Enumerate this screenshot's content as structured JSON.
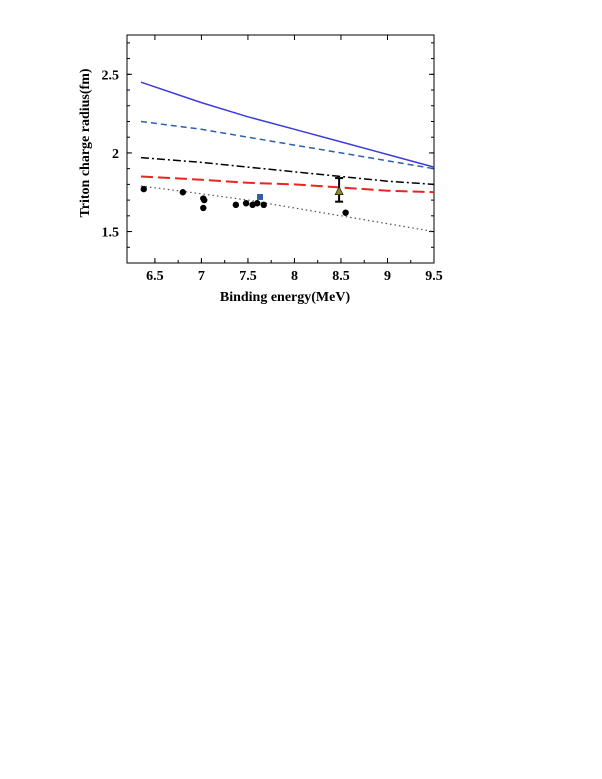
{
  "chart_data": {
    "type": "scatter",
    "title": "",
    "xlabel": "Binding energy(MeV)",
    "ylabel": "Triton charge radius(fm)",
    "xlim": [
      6.2,
      9.5
    ],
    "ylim": [
      1.3,
      2.75
    ],
    "x_ticks": [
      6.5,
      7,
      7.5,
      8,
      8.5,
      9,
      9.5
    ],
    "x_tick_labels": [
      "6.5",
      "7",
      "7.5",
      "8",
      "8.5",
      "9",
      "9.5"
    ],
    "y_ticks": [
      1.5,
      2,
      2.5
    ],
    "y_tick_labels": [
      "1.5",
      "2",
      "2.5"
    ],
    "grid": false,
    "legend": "none",
    "curves": [
      {
        "style": "solid",
        "color": "#3c3ce0",
        "x": [
          6.35,
          7.0,
          7.5,
          8.0,
          8.5,
          9.0,
          9.5
        ],
        "y": [
          2.45,
          2.32,
          2.23,
          2.15,
          2.07,
          1.99,
          1.91
        ]
      },
      {
        "style": "dashed",
        "color": "#2e5fa8",
        "x": [
          6.35,
          7.0,
          7.5,
          8.0,
          8.5,
          9.0,
          9.5
        ],
        "y": [
          2.2,
          2.15,
          2.1,
          2.05,
          2.0,
          1.95,
          1.9
        ]
      },
      {
        "style": "dash-dot",
        "color": "#000000",
        "x": [
          6.35,
          7.0,
          7.5,
          8.0,
          8.5,
          9.0,
          9.5
        ],
        "y": [
          1.97,
          1.94,
          1.91,
          1.88,
          1.85,
          1.82,
          1.8
        ]
      },
      {
        "style": "long-dash",
        "color": "#e8251e",
        "x": [
          6.35,
          7.0,
          7.5,
          8.0,
          8.5,
          9.0,
          9.5
        ],
        "y": [
          1.85,
          1.83,
          1.81,
          1.8,
          1.78,
          1.76,
          1.75
        ]
      },
      {
        "style": "dotted",
        "color": "#555555",
        "x": [
          6.35,
          7.0,
          7.5,
          8.0,
          8.5,
          9.0,
          9.5
        ],
        "y": [
          1.79,
          1.74,
          1.7,
          1.65,
          1.6,
          1.55,
          1.5
        ]
      }
    ],
    "points": [
      {
        "x": 6.38,
        "y": 1.77
      },
      {
        "x": 6.8,
        "y": 1.75
      },
      {
        "x": 7.02,
        "y": 1.71
      },
      {
        "x": 7.03,
        "y": 1.7
      },
      {
        "x": 7.02,
        "y": 1.65
      },
      {
        "x": 7.37,
        "y": 1.67
      },
      {
        "x": 7.48,
        "y": 1.68
      },
      {
        "x": 7.55,
        "y": 1.67
      },
      {
        "x": 7.6,
        "y": 1.68
      },
      {
        "x": 7.67,
        "y": 1.67
      },
      {
        "x": 8.55,
        "y": 1.62
      }
    ],
    "square_point": {
      "x": 7.63,
      "y": 1.72,
      "color": "#2e5fa8"
    },
    "experimental_point": {
      "x": 8.48,
      "y": 1.76,
      "err_low": 1.69,
      "err_high": 1.84,
      "marker_color": "#8a8a2a"
    }
  }
}
